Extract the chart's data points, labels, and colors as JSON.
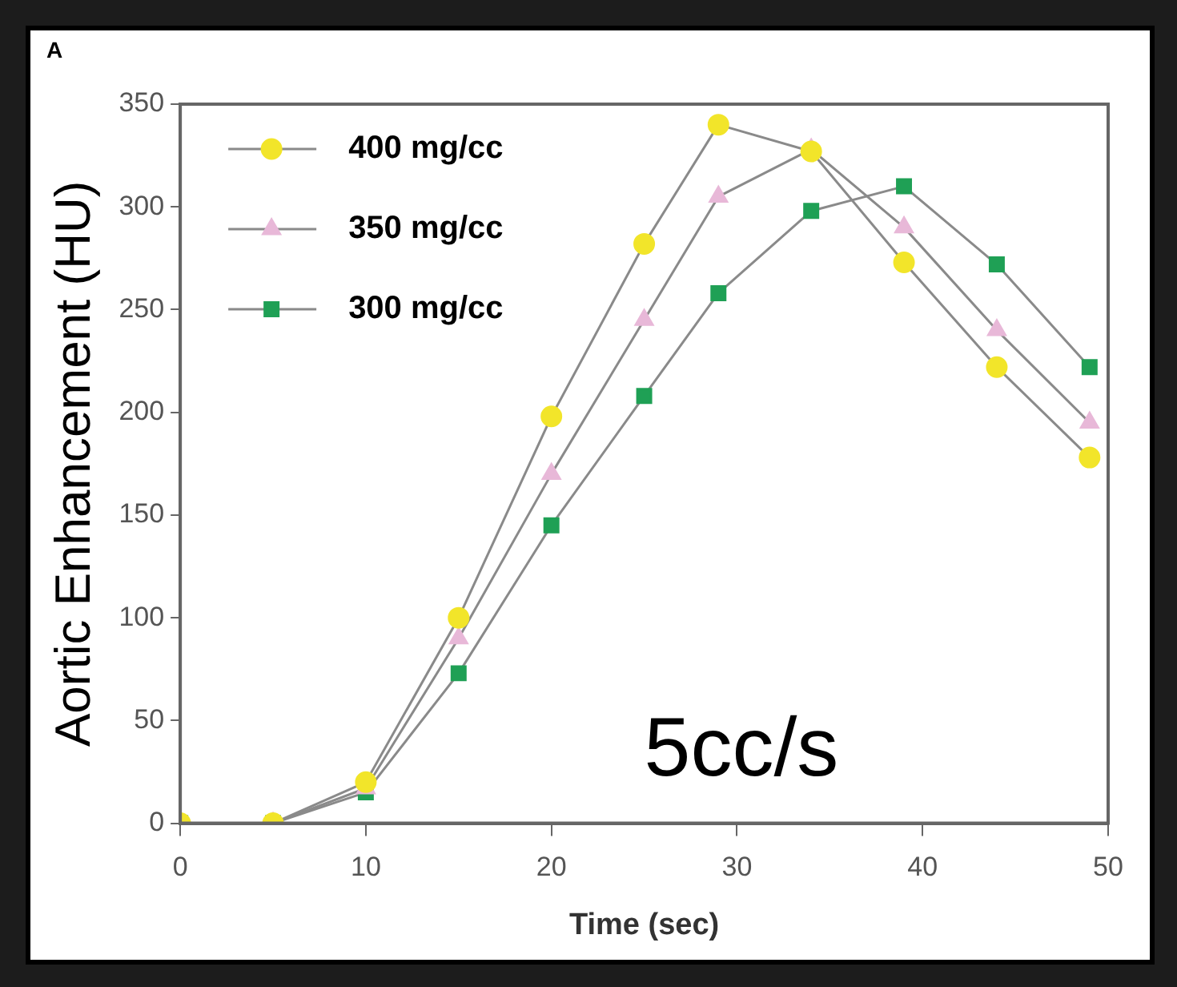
{
  "chart_data": {
    "type": "line",
    "title": "A",
    "xlabel": "Time (sec)",
    "ylabel": "Aortic Enhancement (HU)",
    "x": [
      0,
      5,
      10,
      15,
      20,
      25,
      29,
      34,
      39,
      44,
      49
    ],
    "series": [
      {
        "name": "400 mg/cc",
        "color": "#f2e52a",
        "marker": "circle",
        "values": [
          0,
          0,
          20,
          100,
          198,
          282,
          340,
          327,
          273,
          222,
          178
        ]
      },
      {
        "name": "350 mg/cc",
        "color": "#e8b8d8",
        "marker": "triangle",
        "values": [
          0,
          0,
          17,
          90,
          170,
          245,
          305,
          328,
          290,
          240,
          195
        ]
      },
      {
        "name": "300 mg/cc",
        "color": "#1fa055",
        "marker": "square",
        "values": [
          0,
          0,
          15,
          73,
          145,
          208,
          258,
          298,
          310,
          272,
          222
        ]
      }
    ],
    "xlim": [
      0,
      50
    ],
    "xticks": [
      0,
      10,
      20,
      30,
      40,
      50
    ],
    "ylim": [
      0,
      350
    ],
    "yticks": [
      0,
      50,
      100,
      150,
      200,
      250,
      300,
      350
    ],
    "grid": false,
    "legend": "top left",
    "annotations": [
      "5cc/s"
    ]
  }
}
